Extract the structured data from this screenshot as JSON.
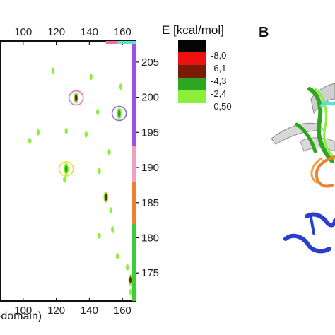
{
  "chart_data": {
    "type": "heatmap",
    "x_axis": {
      "ticks": [
        100,
        120,
        140,
        160
      ],
      "range": [
        86,
        168
      ],
      "label_fragment": "-domain)"
    },
    "y_axis": {
      "ticks": [
        205,
        200,
        195,
        190,
        185,
        180,
        175
      ],
      "range": [
        171,
        208
      ]
    },
    "legend": {
      "title": "E [kcal/mol]",
      "entries": [
        {
          "value": "-8,0",
          "color": "#050505"
        },
        {
          "value": "-6,1",
          "color": "#ee1111"
        },
        {
          "value": "-4,3",
          "color": "#7a1a0a"
        },
        {
          "value": "-2,4",
          "color": "#2fa61f"
        },
        {
          "value": "-0,50",
          "color": "#8af03a"
        }
      ]
    },
    "contacts": [
      {
        "x": 132,
        "y": 199.9,
        "level": "-4,3",
        "circle_color": "#e070c8"
      },
      {
        "x": 158,
        "y": 197.7,
        "level": "-2,4",
        "circle_color": "#7777cc"
      },
      {
        "x": 126,
        "y": 189.8,
        "level": "-2,4",
        "circle_color": "#e8e020"
      },
      {
        "x": 150,
        "y": 185.8,
        "level": "-4,3",
        "circle_color": ""
      },
      {
        "x": 165,
        "y": 174.0,
        "level": "-4,3",
        "circle_color": ""
      },
      {
        "x": 118,
        "y": 203.8,
        "level": "-0,50",
        "circle_color": ""
      },
      {
        "x": 126,
        "y": 195.2,
        "level": "-0,50",
        "circle_color": ""
      },
      {
        "x": 141,
        "y": 202.9,
        "level": "-0,50",
        "circle_color": ""
      },
      {
        "x": 145,
        "y": 197.9,
        "level": "-0,50",
        "circle_color": ""
      },
      {
        "x": 138,
        "y": 194.7,
        "level": "-0,50",
        "circle_color": ""
      },
      {
        "x": 152,
        "y": 192.2,
        "level": "-0,50",
        "circle_color": ""
      },
      {
        "x": 146,
        "y": 189.5,
        "level": "-0,50",
        "circle_color": ""
      },
      {
        "x": 125,
        "y": 188.3,
        "level": "-0,50",
        "circle_color": ""
      },
      {
        "x": 153,
        "y": 183.9,
        "level": "-0,50",
        "circle_color": ""
      },
      {
        "x": 154,
        "y": 181.2,
        "level": "-0,50",
        "circle_color": ""
      },
      {
        "x": 146,
        "y": 180.3,
        "level": "-0,50",
        "circle_color": ""
      },
      {
        "x": 157,
        "y": 177.4,
        "level": "-0,50",
        "circle_color": ""
      },
      {
        "x": 163,
        "y": 175.8,
        "level": "-0,50",
        "circle_color": ""
      },
      {
        "x": 165,
        "y": 172.3,
        "level": "-0,50",
        "circle_color": ""
      },
      {
        "x": 109,
        "y": 195.0,
        "level": "-0,50",
        "circle_color": ""
      },
      {
        "x": 104,
        "y": 193.8,
        "level": "-0,50",
        "circle_color": ""
      },
      {
        "x": 159,
        "y": 201.5,
        "level": "-0,50",
        "circle_color": ""
      }
    ],
    "right_bar_segments": [
      {
        "from": 171,
        "to": 182,
        "color": "#3ccc3c"
      },
      {
        "from": 182,
        "to": 188,
        "color": "#f08030"
      },
      {
        "from": 188,
        "to": 193,
        "color": "#f0a0c0"
      },
      {
        "from": 193,
        "to": 208,
        "color": "#a050e0"
      }
    ],
    "top_bar_segments": [
      {
        "from": 150,
        "to": 157,
        "color": "#f06fa0"
      },
      {
        "from": 157,
        "to": 168,
        "color": "#60e0d0"
      }
    ]
  },
  "panel_b": {
    "letter": "B"
  }
}
